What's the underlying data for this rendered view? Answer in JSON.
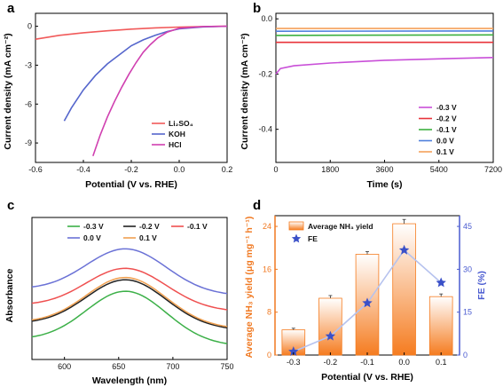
{
  "panels": [
    {
      "letter": "a",
      "chart_data": {
        "type": "line",
        "xlabel": "Potential (V vs. RHE)",
        "ylabel": "Current density (mA cm⁻²)",
        "xlim": [
          -0.6,
          0.2
        ],
        "ylim": [
          -10.5,
          1.0
        ],
        "xticks": [
          "-0.6",
          "-0.4",
          "-0.2",
          "0.0",
          "0.2"
        ],
        "yticks": [
          "0",
          "-3",
          "-6",
          "-9"
        ],
        "legend_position": "bottom-right",
        "series": [
          {
            "name": "Li₂SO₄",
            "color": "#f15a5a",
            "x": [
              -0.6,
              -0.5,
              -0.4,
              -0.3,
              -0.2,
              -0.1,
              0.0,
              0.1,
              0.2
            ],
            "y": [
              -1.0,
              -0.7,
              -0.5,
              -0.35,
              -0.22,
              -0.12,
              -0.06,
              -0.02,
              0.0
            ]
          },
          {
            "name": "KOH",
            "color": "#5566cc",
            "x": [
              -0.48,
              -0.45,
              -0.4,
              -0.35,
              -0.3,
              -0.25,
              -0.2,
              -0.15,
              -0.1,
              -0.05,
              0.0,
              0.1,
              0.2
            ],
            "y": [
              -7.3,
              -6.3,
              -4.9,
              -3.8,
              -2.9,
              -2.2,
              -1.5,
              -1.05,
              -0.7,
              -0.4,
              -0.2,
              -0.05,
              0.0
            ]
          },
          {
            "name": "HCl",
            "color": "#d040b0",
            "x": [
              -0.36,
              -0.33,
              -0.3,
              -0.27,
              -0.24,
              -0.21,
              -0.18,
              -0.15,
              -0.12,
              -0.09,
              -0.05,
              0.0,
              0.1,
              0.2
            ],
            "y": [
              -10.0,
              -8.4,
              -7.0,
              -5.8,
              -4.7,
              -3.7,
              -2.8,
              -2.0,
              -1.4,
              -0.9,
              -0.45,
              -0.15,
              -0.02,
              0.0
            ]
          }
        ]
      }
    },
    {
      "letter": "b",
      "chart_data": {
        "type": "line",
        "xlabel": "Time (s)",
        "ylabel": "Current density (mA cm⁻²)",
        "xlim": [
          0,
          7200
        ],
        "ylim": [
          -0.52,
          0.02
        ],
        "xticks": [
          "0",
          "1800",
          "3600",
          "5400",
          "7200"
        ],
        "yticks": [
          "0.0",
          "-0.2",
          "-0.4"
        ],
        "legend_position": "bottom-right",
        "series": [
          {
            "name": "-0.3 V",
            "color": "#c94fd8",
            "x": [
              0,
              150,
              600,
              1800,
              3600,
              5400,
              7200
            ],
            "y": [
              -0.2,
              -0.18,
              -0.17,
              -0.16,
              -0.15,
              -0.145,
              -0.14
            ]
          },
          {
            "name": "-0.2 V",
            "color": "#e8333a",
            "x": [
              0,
              7200
            ],
            "y": [
              -0.085,
              -0.085
            ]
          },
          {
            "name": "-0.1 V",
            "color": "#3cb040",
            "x": [
              0,
              7200
            ],
            "y": [
              -0.06,
              -0.058
            ]
          },
          {
            "name": "0.0 V",
            "color": "#4e7fdc",
            "x": [
              0,
              7200
            ],
            "y": [
              -0.045,
              -0.044
            ]
          },
          {
            "name": "0.1 V",
            "color": "#f5a15a",
            "x": [
              0,
              7200
            ],
            "y": [
              -0.035,
              -0.035
            ]
          }
        ]
      }
    },
    {
      "letter": "c",
      "chart_data": {
        "type": "line",
        "xlabel": "Wavelength (nm)",
        "ylabel": "Absorbance",
        "xlim": [
          570,
          750
        ],
        "xticks": [
          "600",
          "650",
          "700",
          "750"
        ],
        "legend_position": "top",
        "series": [
          {
            "name": "-0.3 V",
            "color": "#3cb048",
            "peak": 0.45,
            "base": 0.0
          },
          {
            "name": "-0.2 V",
            "color": "#222222",
            "peak": 0.55,
            "base": 0.14
          },
          {
            "name": "-0.1 V",
            "color": "#ef5050",
            "peak": 0.65,
            "base": 0.3
          },
          {
            "name": "0.0 V",
            "color": "#6b72d6",
            "peak": 0.82,
            "base": 0.44
          },
          {
            "name": "0.1 V",
            "color": "#f0a050",
            "peak": 0.57,
            "base": 0.15
          }
        ]
      }
    },
    {
      "letter": "d",
      "chart_data": {
        "type": "bar",
        "xlabel": "Potential (V vs. RHE)",
        "ylabel_left": "Average NH₃ yield (μg mg⁻¹ h⁻¹)",
        "ylabel_right": "FE (%)",
        "categories": [
          "-0.3",
          "-0.2",
          "-0.1",
          "0.0",
          "0.1"
        ],
        "ylim_left": [
          0,
          26
        ],
        "yticks_left": [
          "0",
          "8",
          "16",
          "24"
        ],
        "ylim_right": [
          0,
          48.75
        ],
        "yticks_right": [
          "0",
          "15",
          "30",
          "45"
        ],
        "series": [
          {
            "name": "Average NH₃ yield",
            "type": "bar",
            "color": "#f57c20",
            "values": [
              4.7,
              10.6,
              18.8,
              24.5,
              10.9
            ],
            "errors": [
              0.3,
              0.5,
              0.5,
              0.8,
              0.5
            ]
          },
          {
            "name": "FE",
            "type": "line",
            "color": "#3a50c8",
            "values": [
              1.2,
              6.6,
              18.2,
              36.7,
              25.3
            ]
          }
        ],
        "left_axis_color": "#f07820",
        "right_axis_color": "#4a5bd0"
      }
    }
  ]
}
